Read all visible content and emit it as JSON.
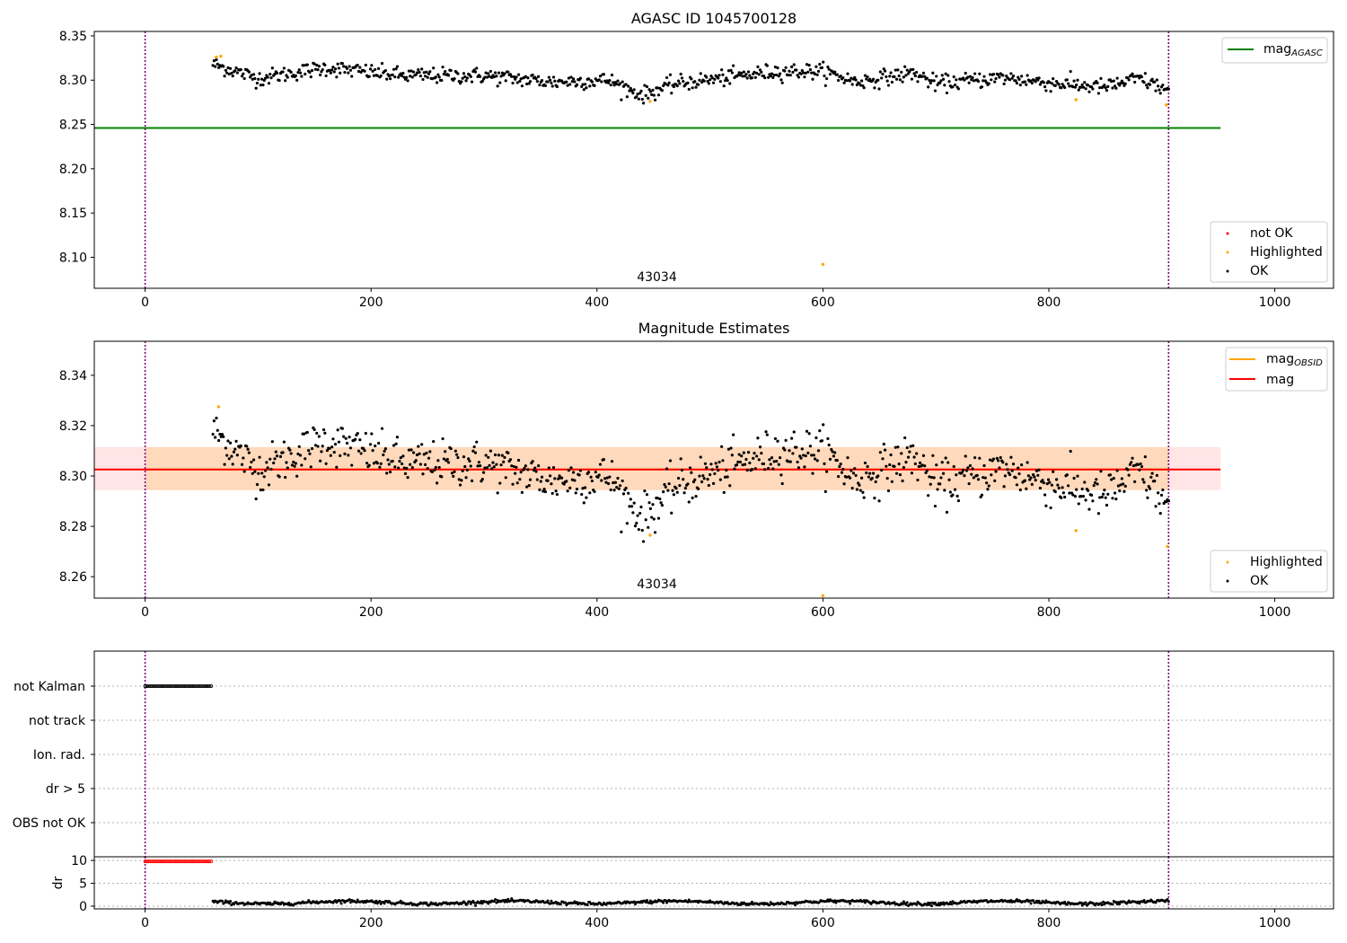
{
  "chart_data": [
    {
      "type": "scatter",
      "title": "AGASC ID 1045700128",
      "xlim": [
        -45,
        1052
      ],
      "ylim": [
        8.065,
        8.355
      ],
      "xticks": [
        0,
        200,
        400,
        600,
        800,
        1000
      ],
      "yticks": [
        8.1,
        8.15,
        8.2,
        8.25,
        8.3,
        8.35
      ],
      "ytick_labels": [
        "8.10",
        "8.15",
        "8.20",
        "8.25",
        "8.30",
        "8.35"
      ],
      "vlines": [
        0,
        906
      ],
      "hline": {
        "y": 8.246,
        "x_range": [
          -45,
          952
        ],
        "color": "#008000",
        "name": "mag",
        "name_sub": "AGASC"
      },
      "annotation": {
        "text": "43034",
        "x": 453,
        "y": 8.073
      },
      "legend_top": "upper right",
      "legend_bottom": "lower right",
      "legend_series": [
        {
          "name": "not OK",
          "color": "#ff0000"
        },
        {
          "name": "Highlighted",
          "color": "#ffa500"
        },
        {
          "name": "OK",
          "color": "#000000"
        }
      ],
      "highlighted_points": [
        [
          63,
          8.326
        ],
        [
          67,
          8.327
        ],
        [
          447,
          8.276
        ],
        [
          600,
          8.092
        ],
        [
          824,
          8.278
        ],
        [
          904,
          8.272
        ]
      ],
      "ok_series": {
        "x_start": 60,
        "x_end": 906,
        "n": 820,
        "mean": 8.303
      }
    },
    {
      "type": "scatter",
      "title": "Magnitude Estimates",
      "xlim": [
        -45,
        1052
      ],
      "ylim": [
        8.2515,
        8.3535
      ],
      "xticks": [
        0,
        200,
        400,
        600,
        800,
        1000
      ],
      "yticks": [
        8.26,
        8.28,
        8.3,
        8.32,
        8.34
      ],
      "ytick_labels": [
        "8.26",
        "8.28",
        "8.30",
        "8.32",
        "8.34"
      ],
      "vlines": [
        0,
        906
      ],
      "mag_line": {
        "y": 8.3026,
        "color": "#ff0000",
        "name": "mag"
      },
      "mag_band": {
        "y_low": 8.2944,
        "y_high": 8.3115,
        "x_range": [
          -45,
          952
        ]
      },
      "obsid_line": {
        "y": 8.3026,
        "x_range": [
          0,
          906
        ],
        "color": "#ffa500",
        "name": "mag",
        "name_sub": "OBSID"
      },
      "annotation": {
        "text": "43034",
        "x": 453,
        "y": 8.2555
      },
      "legend_top": "upper right",
      "legend_bottom": "lower right",
      "legend_series": [
        {
          "name": "Highlighted",
          "color": "#ffa500"
        },
        {
          "name": "OK",
          "color": "#000000"
        }
      ],
      "highlighted_points": [
        [
          65,
          8.3275
        ],
        [
          447,
          8.2765
        ],
        [
          600,
          8.2525
        ],
        [
          824,
          8.2783
        ],
        [
          905,
          8.272
        ]
      ]
    },
    {
      "type": "scatter",
      "title": "",
      "xlim": [
        -45,
        1052
      ],
      "flag_labels": [
        "not Kalman",
        "not track",
        "Ion. rad.",
        "dr > 5",
        "OBS not OK"
      ],
      "flag_not_kalman": {
        "x_start": 0,
        "x_end": 59
      },
      "vlines": [
        0,
        906
      ]
    },
    {
      "type": "scatter",
      "title": "",
      "ylabel": "dr",
      "xlim": [
        -45,
        1052
      ],
      "ylim": [
        -0.6,
        10.8
      ],
      "xticks": [
        0,
        200,
        400,
        600,
        800,
        1000
      ],
      "yticks": [
        0,
        5,
        10
      ],
      "ytick_labels": [
        "0",
        "5",
        "10"
      ],
      "clipped_points": {
        "x_start": 0,
        "x_end": 59,
        "y": 9.8,
        "color": "#ff0000"
      },
      "dr_series": {
        "x_start": 60,
        "x_end": 906,
        "mean": 0.8
      },
      "vlines": [
        0,
        906
      ]
    }
  ]
}
